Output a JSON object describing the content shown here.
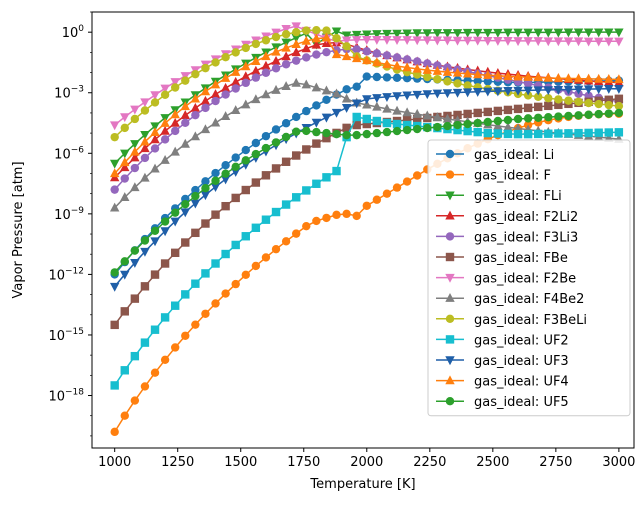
{
  "chart_data": {
    "type": "line",
    "xlabel": "Temperature [K]",
    "ylabel": "Vapor Pressure [atm]",
    "xlim": [
      910,
      3060
    ],
    "ylim_log10": [
      -20.6,
      1.0
    ],
    "yscale": "log",
    "x_ticks": [
      1000,
      1250,
      1500,
      1750,
      2000,
      2250,
      2500,
      2750,
      3000
    ],
    "x_tick_labels": [
      "1000",
      "1250",
      "1500",
      "1750",
      "2000",
      "2250",
      "2500",
      "2750",
      "3000"
    ],
    "y_tick_exponents": [
      0,
      -3,
      -6,
      -9,
      -12,
      -15,
      -18
    ],
    "y_tick_labels": [
      "10^0",
      "10^-3",
      "10^-6",
      "10^-9",
      "10^-12",
      "10^-15",
      "10^-18"
    ],
    "legend_position": "lower right",
    "x": [
      1000,
      1040,
      1080,
      1120,
      1160,
      1200,
      1240,
      1280,
      1320,
      1360,
      1400,
      1440,
      1480,
      1520,
      1560,
      1600,
      1640,
      1680,
      1720,
      1760,
      1800,
      1840,
      1880,
      1920,
      1960,
      2000,
      2040,
      2080,
      2120,
      2160,
      2200,
      2240,
      2280,
      2320,
      2360,
      2400,
      2440,
      2480,
      2520,
      2560,
      2600,
      2640,
      2680,
      2720,
      2760,
      2800,
      2840,
      2880,
      2920,
      2960,
      3000
    ],
    "series": [
      {
        "name": "gas_ideal: Li",
        "color": "#1f77b4",
        "marker": "circle",
        "log10_values": [
          -12.0,
          -11.39,
          -10.81,
          -10.25,
          -9.72,
          -9.21,
          -8.73,
          -8.26,
          -7.82,
          -7.39,
          -6.98,
          -6.59,
          -6.21,
          -5.84,
          -5.49,
          -5.15,
          -4.82,
          -4.51,
          -4.2,
          -3.91,
          -3.63,
          -3.35,
          -3.09,
          -2.83,
          -2.7,
          -2.2,
          -2.22,
          -2.24,
          -2.26,
          -2.28,
          -2.3,
          -2.32,
          -2.34,
          -2.36,
          -2.38,
          -2.4,
          -2.42,
          -2.44,
          -2.46,
          -2.48,
          -2.5,
          -2.5,
          -2.48,
          -2.47,
          -2.46,
          -2.45,
          -2.44,
          -2.43,
          -2.42,
          -2.41,
          -2.4
        ]
      },
      {
        "name": "gas_ideal: F",
        "color": "#ff7f0e",
        "marker": "circle",
        "log10_values": [
          -19.8,
          -19.0,
          -18.25,
          -17.55,
          -16.87,
          -16.23,
          -15.62,
          -15.04,
          -14.49,
          -13.95,
          -13.44,
          -12.95,
          -12.48,
          -12.02,
          -11.58,
          -11.16,
          -10.75,
          -10.36,
          -9.98,
          -9.61,
          -9.35,
          -9.2,
          -9.05,
          -9.0,
          -9.1,
          -8.6,
          -8.3,
          -8.0,
          -7.7,
          -7.4,
          -7.1,
          -6.8,
          -6.52,
          -6.25,
          -6.0,
          -5.75,
          -5.52,
          -5.3,
          -5.1,
          -4.92,
          -4.75,
          -4.6,
          -4.47,
          -4.36,
          -4.27,
          -4.2,
          -4.14,
          -4.1,
          -4.07,
          -4.05,
          -4.04
        ]
      },
      {
        "name": "gas_ideal: FLi",
        "color": "#2ca02c",
        "marker": "tri-down",
        "log10_values": [
          -6.5,
          -6.0,
          -5.53,
          -5.08,
          -4.65,
          -4.24,
          -3.85,
          -3.47,
          -3.11,
          -2.77,
          -2.44,
          -2.13,
          -1.83,
          -1.54,
          -1.26,
          -0.99,
          -0.74,
          -0.5,
          -0.27,
          -0.05,
          -0.6,
          -0.25,
          0.05,
          -0.15,
          -0.12,
          -0.1,
          -0.08,
          -0.07,
          -0.06,
          -0.05,
          -0.04,
          -0.04,
          -0.03,
          -0.03,
          -0.03,
          -0.02,
          -0.02,
          -0.02,
          -0.02,
          -0.01,
          -0.01,
          -0.01,
          -0.01,
          -0.01,
          -0.01,
          0.0,
          0.0,
          0.0,
          0.0,
          0.0,
          0.0
        ]
      },
      {
        "name": "gas_ideal: F2Li2",
        "color": "#d62728",
        "marker": "tri-up",
        "log10_values": [
          -7.2,
          -6.7,
          -6.22,
          -5.76,
          -5.32,
          -4.9,
          -4.5,
          -4.12,
          -3.76,
          -3.41,
          -3.08,
          -2.77,
          -2.47,
          -2.19,
          -1.92,
          -1.67,
          -1.43,
          -1.21,
          -1.0,
          -0.81,
          -0.63,
          -0.55,
          -0.52,
          -0.6,
          -0.75,
          -0.9,
          -1.03,
          -1.15,
          -1.26,
          -1.36,
          -1.46,
          -1.55,
          -1.63,
          -1.71,
          -1.78,
          -1.85,
          -1.91,
          -1.97,
          -2.03,
          -2.08,
          -2.13,
          -2.18,
          -2.22,
          -2.26,
          -2.3,
          -2.34,
          -2.37,
          -2.41,
          -2.44,
          -2.47,
          -2.5
        ]
      },
      {
        "name": "gas_ideal: F3Li3",
        "color": "#9467bd",
        "marker": "circle",
        "log10_values": [
          -7.8,
          -7.25,
          -6.73,
          -6.23,
          -5.76,
          -5.31,
          -4.89,
          -4.49,
          -4.11,
          -3.75,
          -3.41,
          -3.09,
          -2.79,
          -2.51,
          -2.25,
          -2.01,
          -1.79,
          -1.59,
          -1.41,
          -1.25,
          -1.11,
          -0.99,
          -0.9,
          -0.84,
          -0.85,
          -0.95,
          -1.05,
          -1.15,
          -1.25,
          -1.35,
          -1.45,
          -1.55,
          -1.65,
          -1.75,
          -1.85,
          -1.95,
          -2.05,
          -2.15,
          -2.25,
          -2.35,
          -2.45,
          -2.55,
          -2.65,
          -2.75,
          -2.85,
          -2.95,
          -3.05,
          -3.15,
          -3.25,
          -3.35,
          -3.45
        ]
      },
      {
        "name": "gas_ideal: FBe",
        "color": "#8c564b",
        "marker": "square",
        "log10_values": [
          -14.5,
          -13.83,
          -13.2,
          -12.59,
          -12.01,
          -11.46,
          -10.93,
          -10.42,
          -9.94,
          -9.48,
          -9.04,
          -8.62,
          -8.21,
          -7.82,
          -7.45,
          -7.09,
          -6.75,
          -6.42,
          -6.11,
          -5.81,
          -5.52,
          -5.25,
          -4.99,
          -4.74,
          -4.6,
          -4.55,
          -4.5,
          -4.45,
          -4.4,
          -4.35,
          -4.3,
          -4.25,
          -4.2,
          -4.15,
          -4.1,
          -4.05,
          -4.0,
          -3.95,
          -3.9,
          -3.85,
          -3.8,
          -3.75,
          -3.7,
          -3.65,
          -3.6,
          -3.55,
          -3.5,
          -3.45,
          -3.4,
          -3.35,
          -3.3
        ]
      },
      {
        "name": "gas_ideal: F2Be",
        "color": "#e377c2",
        "marker": "tri-down",
        "log10_values": [
          -4.6,
          -4.2,
          -3.82,
          -3.46,
          -3.11,
          -2.78,
          -2.46,
          -2.16,
          -1.87,
          -1.59,
          -1.33,
          -1.08,
          -0.84,
          -0.61,
          -0.4,
          -0.2,
          -0.01,
          0.17,
          0.3,
          0.08,
          -0.1,
          -0.3,
          -0.45,
          -0.4,
          -0.38,
          -0.37,
          -0.37,
          -0.37,
          -0.38,
          -0.38,
          -0.39,
          -0.39,
          -0.4,
          -0.4,
          -0.41,
          -0.41,
          -0.41,
          -0.42,
          -0.42,
          -0.42,
          -0.43,
          -0.43,
          -0.43,
          -0.44,
          -0.44,
          -0.44,
          -0.44,
          -0.45,
          -0.45,
          -0.45,
          -0.45
        ]
      },
      {
        "name": "gas_ideal: F4Be2",
        "color": "#7f7f7f",
        "marker": "tri-up",
        "log10_values": [
          -8.7,
          -8.18,
          -7.69,
          -7.22,
          -6.77,
          -6.34,
          -5.93,
          -5.54,
          -5.17,
          -4.82,
          -4.49,
          -4.17,
          -3.87,
          -3.59,
          -3.33,
          -3.09,
          -2.87,
          -2.68,
          -2.52,
          -2.6,
          -2.75,
          -2.9,
          -3.05,
          -3.3,
          -3.5,
          -3.6,
          -3.7,
          -3.8,
          -3.9,
          -3.98,
          -4.06,
          -4.14,
          -4.22,
          -4.3,
          -4.37,
          -4.44,
          -4.51,
          -4.58,
          -4.65,
          -4.71,
          -4.77,
          -4.83,
          -4.89,
          -4.95,
          -5.0,
          -5.05,
          -5.1,
          -5.15,
          -5.2,
          -5.25,
          -5.3
        ]
      },
      {
        "name": "gas_ideal: F3BeLi",
        "color": "#bcbd22",
        "marker": "circle",
        "log10_values": [
          -5.2,
          -4.74,
          -4.3,
          -3.88,
          -3.48,
          -3.1,
          -2.74,
          -2.4,
          -2.08,
          -1.78,
          -1.5,
          -1.24,
          -1.0,
          -0.78,
          -0.58,
          -0.4,
          -0.24,
          -0.1,
          0.0,
          0.08,
          0.1,
          0.08,
          -0.3,
          -0.7,
          -1.2,
          -1.4,
          -1.55,
          -1.7,
          -1.85,
          -1.98,
          -2.1,
          -2.22,
          -2.33,
          -2.44,
          -2.54,
          -2.64,
          -2.73,
          -2.82,
          -2.9,
          -2.98,
          -3.06,
          -3.13,
          -3.2,
          -3.27,
          -3.33,
          -3.39,
          -3.45,
          -3.51,
          -3.56,
          -3.61,
          -3.66
        ]
      },
      {
        "name": "gas_ideal: UF2",
        "color": "#17becf",
        "marker": "square",
        "log10_values": [
          -17.5,
          -16.75,
          -16.05,
          -15.38,
          -14.74,
          -14.13,
          -13.55,
          -12.99,
          -12.46,
          -11.95,
          -11.46,
          -10.99,
          -10.54,
          -10.11,
          -9.69,
          -9.29,
          -8.91,
          -8.54,
          -8.18,
          -7.84,
          -7.51,
          -7.19,
          -6.88,
          -5.2,
          -4.2,
          -4.3,
          -4.4,
          -4.5,
          -4.55,
          -4.6,
          -4.65,
          -4.7,
          -4.75,
          -4.8,
          -4.85,
          -4.9,
          -4.95,
          -5.0,
          -5.02,
          -5.04,
          -5.05,
          -5.05,
          -5.04,
          -5.03,
          -5.02,
          -5.01,
          -5.0,
          -4.99,
          -4.98,
          -4.97,
          -4.96
        ]
      },
      {
        "name": "gas_ideal: UF3",
        "color": "#1f5fa8",
        "marker": "tri-down",
        "log10_values": [
          -12.6,
          -12.0,
          -11.42,
          -10.87,
          -10.35,
          -9.85,
          -9.37,
          -8.91,
          -8.48,
          -8.06,
          -7.66,
          -7.28,
          -6.91,
          -6.56,
          -6.22,
          -5.9,
          -5.59,
          -5.29,
          -5.01,
          -4.73,
          -4.47,
          -4.22,
          -3.98,
          -3.74,
          -3.52,
          -3.31,
          -3.25,
          -3.2,
          -3.16,
          -3.12,
          -3.09,
          -3.06,
          -3.03,
          -3.01,
          -2.99,
          -2.97,
          -2.95,
          -2.93,
          -2.92,
          -2.9,
          -2.89,
          -2.88,
          -2.87,
          -2.86,
          -2.85,
          -2.84,
          -2.83,
          -2.82,
          -2.81,
          -2.8,
          -2.8
        ]
      },
      {
        "name": "gas_ideal: UF4",
        "color": "#ff7f0e",
        "marker": "tri-up",
        "log10_values": [
          -7.0,
          -6.45,
          -5.93,
          -5.43,
          -4.96,
          -4.51,
          -4.08,
          -3.68,
          -3.3,
          -2.94,
          -2.6,
          -2.28,
          -1.98,
          -1.7,
          -1.44,
          -1.2,
          -0.98,
          -0.78,
          -0.6,
          -0.44,
          -0.32,
          -0.28,
          -1.1,
          -1.2,
          -1.3,
          -1.4,
          -1.5,
          -1.6,
          -1.68,
          -1.75,
          -1.82,
          -1.88,
          -1.93,
          -1.98,
          -2.02,
          -2.06,
          -2.1,
          -2.13,
          -2.16,
          -2.19,
          -2.21,
          -2.23,
          -2.25,
          -2.27,
          -2.28,
          -2.29,
          -2.3,
          -2.31,
          -2.32,
          -2.33,
          -2.34
        ]
      },
      {
        "name": "gas_ideal: UF5",
        "color": "#2ca02c",
        "marker": "circle",
        "log10_values": [
          -11.9,
          -11.35,
          -10.82,
          -10.32,
          -9.84,
          -9.38,
          -8.94,
          -8.52,
          -8.12,
          -7.73,
          -7.36,
          -7.01,
          -6.67,
          -6.35,
          -6.04,
          -5.74,
          -5.46,
          -5.19,
          -4.93,
          -4.89,
          -4.95,
          -5.0,
          -5.05,
          -5.1,
          -5.1,
          -5.05,
          -5.0,
          -4.95,
          -4.9,
          -4.85,
          -4.8,
          -4.75,
          -4.7,
          -4.65,
          -4.6,
          -4.55,
          -4.5,
          -4.45,
          -4.4,
          -4.35,
          -4.3,
          -4.27,
          -4.24,
          -4.21,
          -4.18,
          -4.15,
          -4.12,
          -4.09,
          -4.06,
          -4.03,
          -4.0
        ]
      }
    ]
  }
}
